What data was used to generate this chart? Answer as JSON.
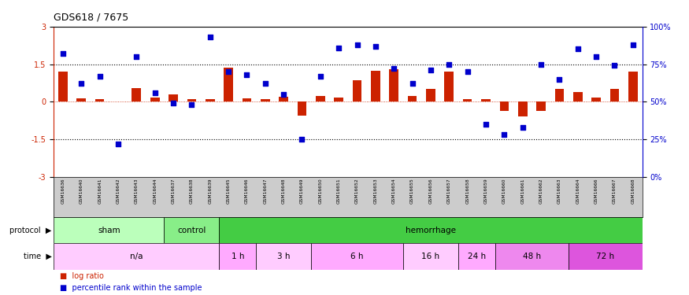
{
  "title": "GDS618 / 7675",
  "samples": [
    "GSM16636",
    "GSM16640",
    "GSM16641",
    "GSM16642",
    "GSM16643",
    "GSM16644",
    "GSM16637",
    "GSM16638",
    "GSM16639",
    "GSM16645",
    "GSM16646",
    "GSM16647",
    "GSM16648",
    "GSM16649",
    "GSM16650",
    "GSM16651",
    "GSM16652",
    "GSM16653",
    "GSM16654",
    "GSM16655",
    "GSM16656",
    "GSM16657",
    "GSM16658",
    "GSM16659",
    "GSM16660",
    "GSM16661",
    "GSM16662",
    "GSM16663",
    "GSM16664",
    "GSM16666",
    "GSM16667",
    "GSM16668"
  ],
  "log_ratio": [
    1.2,
    0.15,
    0.12,
    0.0,
    0.55,
    0.18,
    0.3,
    0.12,
    0.12,
    1.35,
    0.15,
    0.12,
    0.2,
    -0.55,
    0.22,
    0.18,
    0.85,
    1.25,
    1.3,
    0.22,
    0.5,
    1.2,
    0.1,
    0.1,
    -0.35,
    -0.6,
    -0.35,
    0.5,
    0.4,
    0.18,
    0.5,
    1.2
  ],
  "percentile": [
    82,
    62,
    67,
    22,
    80,
    56,
    49,
    48,
    93,
    70,
    68,
    62,
    55,
    25,
    67,
    86,
    88,
    87,
    72,
    62,
    71,
    75,
    70,
    35,
    28,
    33,
    75,
    65,
    85,
    80,
    74,
    88
  ],
  "bar_color": "#cc2200",
  "dot_color": "#0000cc",
  "yticks_left": [
    -3,
    -1.5,
    0,
    1.5,
    3
  ],
  "yticks_right": [
    0,
    25,
    50,
    75,
    100
  ],
  "hline_vals": [
    1.5,
    -1.5
  ],
  "protocol_groups": [
    {
      "label": "sham",
      "start": 0,
      "end": 5,
      "color": "#bbffbb"
    },
    {
      "label": "control",
      "start": 6,
      "end": 8,
      "color": "#88ee88"
    },
    {
      "label": "hemorrhage",
      "start": 9,
      "end": 31,
      "color": "#44cc44"
    }
  ],
  "time_groups": [
    {
      "label": "n/a",
      "start": 0,
      "end": 8,
      "color": "#ffccff"
    },
    {
      "label": "1 h",
      "start": 9,
      "end": 10,
      "color": "#ffaaff"
    },
    {
      "label": "3 h",
      "start": 11,
      "end": 13,
      "color": "#ffccff"
    },
    {
      "label": "6 h",
      "start": 14,
      "end": 18,
      "color": "#ffaaff"
    },
    {
      "label": "16 h",
      "start": 19,
      "end": 21,
      "color": "#ffccff"
    },
    {
      "label": "24 h",
      "start": 22,
      "end": 23,
      "color": "#ffaaff"
    },
    {
      "label": "48 h",
      "start": 24,
      "end": 27,
      "color": "#ee88ee"
    },
    {
      "label": "72 h",
      "start": 28,
      "end": 31,
      "color": "#dd55dd"
    }
  ]
}
